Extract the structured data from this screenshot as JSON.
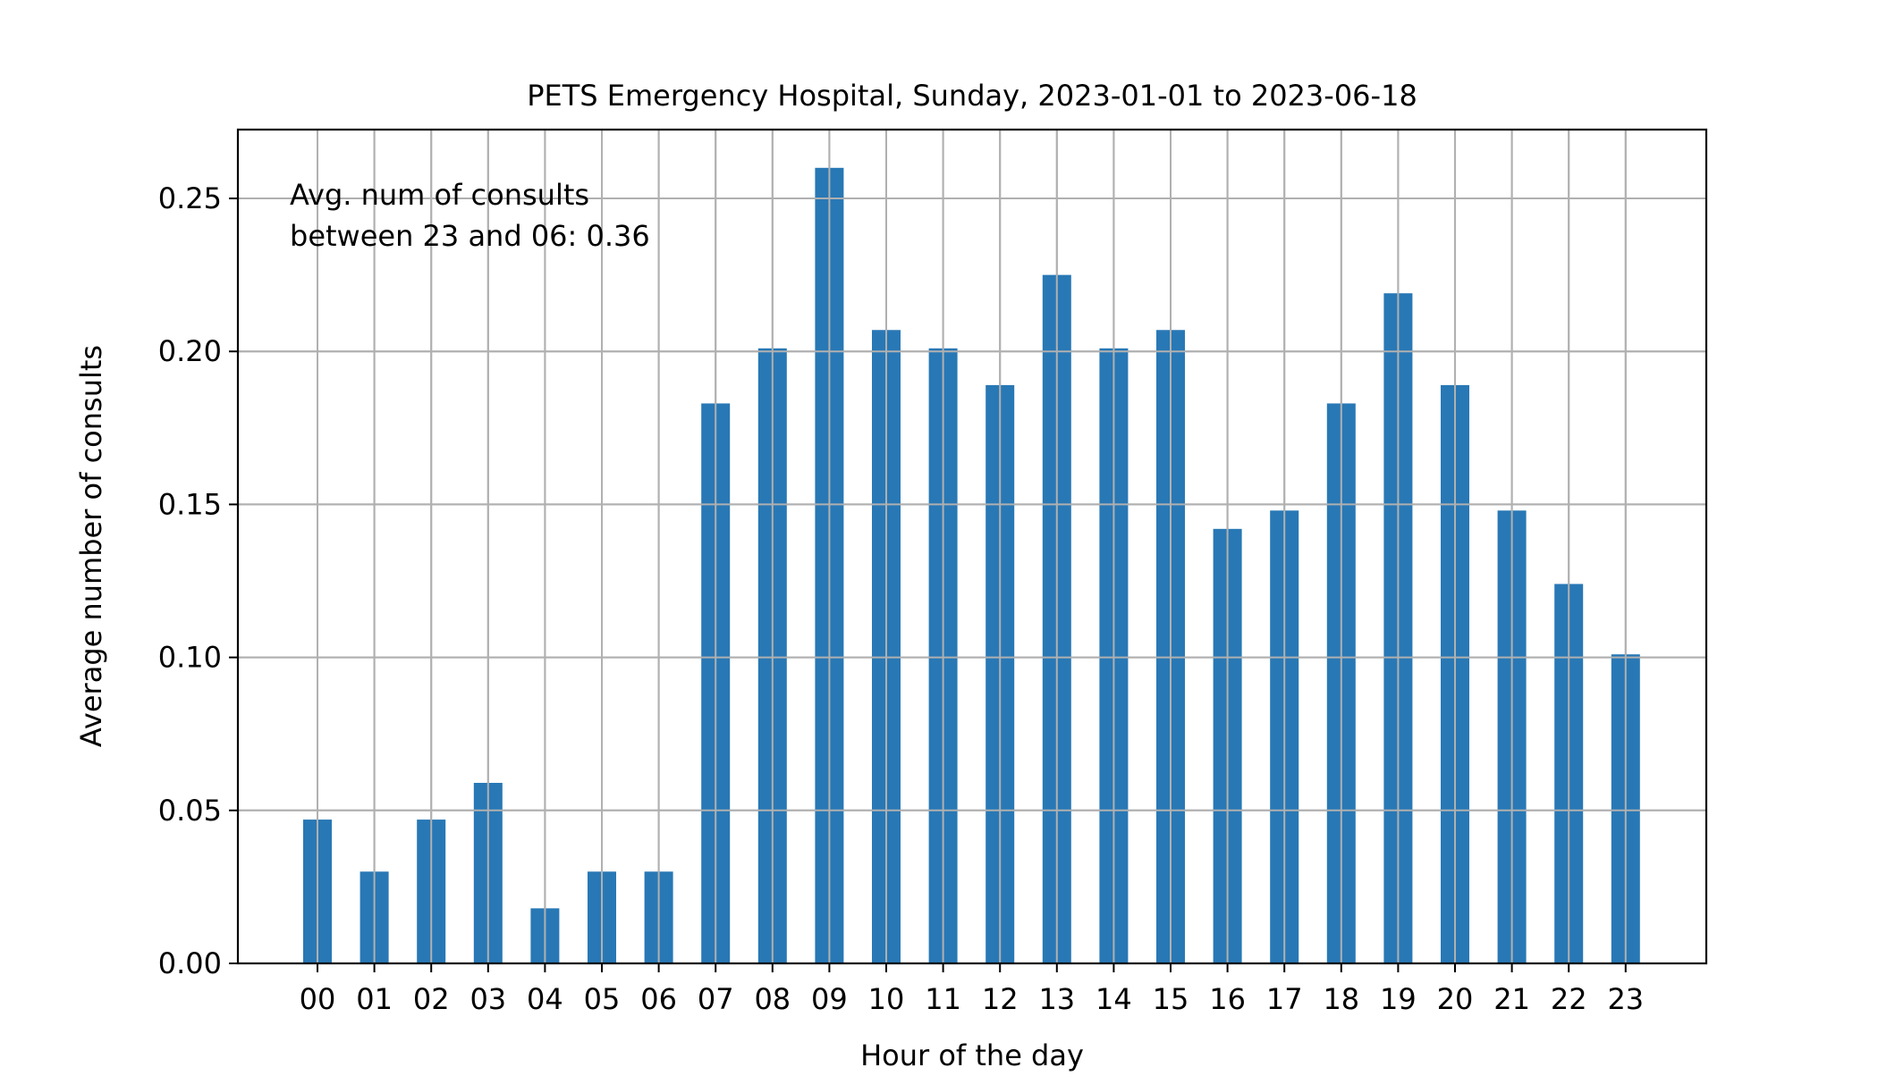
{
  "chart_data": {
    "type": "bar",
    "title": "PETS Emergency Hospital, Sunday, 2023-01-01 to 2023-06-18",
    "xlabel": "Hour of the day",
    "ylabel": "Average number of consults",
    "categories": [
      "00",
      "01",
      "02",
      "03",
      "04",
      "05",
      "06",
      "07",
      "08",
      "09",
      "10",
      "11",
      "12",
      "13",
      "14",
      "15",
      "16",
      "17",
      "18",
      "19",
      "20",
      "21",
      "22",
      "23"
    ],
    "values": [
      0.047,
      0.03,
      0.047,
      0.059,
      0.018,
      0.03,
      0.03,
      0.183,
      0.201,
      0.26,
      0.207,
      0.201,
      0.189,
      0.225,
      0.201,
      0.207,
      0.142,
      0.148,
      0.183,
      0.219,
      0.189,
      0.148,
      0.124,
      0.101
    ],
    "ylim": [
      0,
      0.2725
    ],
    "yticks": [
      "0.00",
      "0.05",
      "0.10",
      "0.15",
      "0.20",
      "0.25"
    ],
    "grid": true,
    "bar_color": "#2878b5",
    "annotation": {
      "line1": "Avg. num of consults",
      "line2": "between 23 and 06: 0.36"
    }
  }
}
